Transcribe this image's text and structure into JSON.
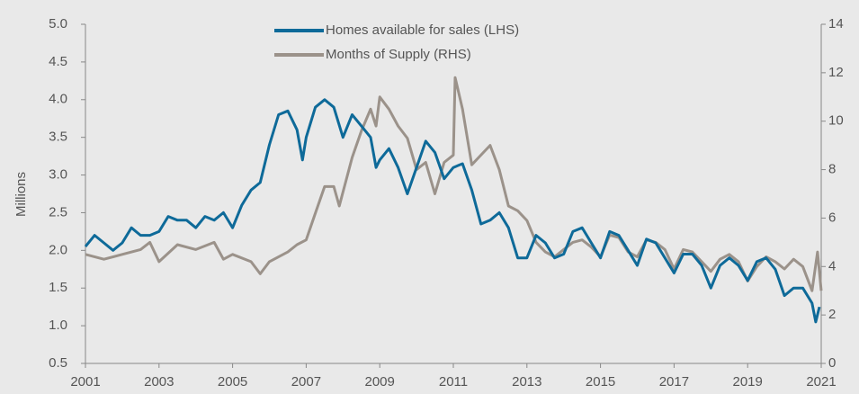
{
  "chart_data": {
    "type": "line",
    "y_label": "Millions",
    "legend": "top",
    "xlim": [
      2001,
      2021
    ],
    "xticks": [
      2001,
      2003,
      2005,
      2007,
      2009,
      2011,
      2013,
      2015,
      2017,
      2019,
      2021
    ],
    "ylim": [
      0.5,
      5.0
    ],
    "yticks": [
      {
        "value": 0.5,
        "label": "0.5"
      },
      {
        "value": 1.0,
        "label": "1.0"
      },
      {
        "value": 1.5,
        "label": "1.5"
      },
      {
        "value": 2.0,
        "label": "2.0"
      },
      {
        "value": 2.5,
        "label": "2.5"
      },
      {
        "value": 3.0,
        "label": "3.0"
      },
      {
        "value": 3.5,
        "label": "3.5"
      },
      {
        "value": 4.0,
        "label": "4.0"
      },
      {
        "value": 4.5,
        "label": "4.5"
      },
      {
        "value": 5.0,
        "label": "5.0"
      }
    ],
    "y2lim": [
      0,
      14
    ],
    "y2ticks": [
      0,
      2,
      4,
      6,
      8,
      10,
      12,
      14
    ],
    "series": [
      {
        "name": "Homes available for sales (LHS)",
        "color": "#0e6a99",
        "axis": "y",
        "x": [
          2001.0,
          2001.25,
          2001.5,
          2001.75,
          2002.0,
          2002.25,
          2002.5,
          2002.75,
          2003.0,
          2003.25,
          2003.5,
          2003.75,
          2004.0,
          2004.25,
          2004.5,
          2004.75,
          2005.0,
          2005.25,
          2005.5,
          2005.75,
          2006.0,
          2006.25,
          2006.5,
          2006.75,
          2006.9,
          2007.0,
          2007.25,
          2007.5,
          2007.75,
          2008.0,
          2008.25,
          2008.5,
          2008.75,
          2008.9,
          2009.0,
          2009.25,
          2009.5,
          2009.75,
          2010.0,
          2010.25,
          2010.5,
          2010.75,
          2011.0,
          2011.25,
          2011.5,
          2011.75,
          2012.0,
          2012.25,
          2012.5,
          2012.75,
          2013.0,
          2013.25,
          2013.5,
          2013.75,
          2014.0,
          2014.25,
          2014.5,
          2014.75,
          2015.0,
          2015.25,
          2015.5,
          2015.75,
          2016.0,
          2016.25,
          2016.5,
          2016.75,
          2017.0,
          2017.25,
          2017.5,
          2017.75,
          2018.0,
          2018.25,
          2018.5,
          2018.75,
          2019.0,
          2019.25,
          2019.5,
          2019.75,
          2020.0,
          2020.25,
          2020.5,
          2020.75,
          2020.85,
          2020.95
        ],
        "values": [
          2.05,
          2.2,
          2.1,
          2.0,
          2.1,
          2.3,
          2.2,
          2.2,
          2.25,
          2.45,
          2.4,
          2.4,
          2.3,
          2.45,
          2.4,
          2.5,
          2.3,
          2.6,
          2.8,
          2.9,
          3.4,
          3.8,
          3.85,
          3.6,
          3.2,
          3.5,
          3.9,
          4.0,
          3.9,
          3.5,
          3.8,
          3.65,
          3.5,
          3.1,
          3.2,
          3.35,
          3.1,
          2.75,
          3.1,
          3.45,
          3.3,
          2.95,
          3.1,
          3.15,
          2.8,
          2.35,
          2.4,
          2.5,
          2.3,
          1.9,
          1.9,
          2.2,
          2.1,
          1.9,
          1.95,
          2.25,
          2.3,
          2.1,
          1.9,
          2.25,
          2.2,
          2.0,
          1.8,
          2.15,
          2.1,
          1.9,
          1.7,
          1.95,
          1.95,
          1.8,
          1.5,
          1.8,
          1.9,
          1.8,
          1.6,
          1.85,
          1.9,
          1.75,
          1.4,
          1.5,
          1.5,
          1.3,
          1.05,
          1.25
        ]
      },
      {
        "name": "Months of Supply (RHS)",
        "color": "#9b928a",
        "axis": "y2",
        "x": [
          2001.0,
          2001.5,
          2002.0,
          2002.5,
          2002.75,
          2003.0,
          2003.5,
          2004.0,
          2004.5,
          2004.75,
          2005.0,
          2005.5,
          2005.75,
          2006.0,
          2006.5,
          2006.75,
          2007.0,
          2007.25,
          2007.5,
          2007.75,
          2007.9,
          2008.25,
          2008.5,
          2008.75,
          2008.9,
          2009.0,
          2009.25,
          2009.5,
          2009.75,
          2010.0,
          2010.25,
          2010.5,
          2010.75,
          2011.0,
          2011.05,
          2011.25,
          2011.5,
          2011.75,
          2012.0,
          2012.25,
          2012.5,
          2012.75,
          2013.0,
          2013.25,
          2013.5,
          2013.75,
          2014.0,
          2014.25,
          2014.5,
          2014.75,
          2015.0,
          2015.25,
          2015.5,
          2015.75,
          2016.0,
          2016.25,
          2016.5,
          2016.75,
          2017.0,
          2017.25,
          2017.5,
          2017.75,
          2018.0,
          2018.25,
          2018.5,
          2018.75,
          2019.0,
          2019.25,
          2019.5,
          2019.75,
          2020.0,
          2020.25,
          2020.5,
          2020.75,
          2020.9,
          2021.0
        ],
        "values": [
          4.5,
          4.3,
          4.5,
          4.7,
          5.0,
          4.2,
          4.9,
          4.7,
          5.0,
          4.3,
          4.5,
          4.2,
          3.7,
          4.2,
          4.6,
          4.9,
          5.1,
          6.2,
          7.3,
          7.3,
          6.5,
          8.5,
          9.6,
          10.5,
          9.8,
          11.0,
          10.5,
          9.8,
          9.3,
          8.0,
          8.3,
          7.0,
          8.3,
          8.6,
          11.8,
          10.5,
          8.2,
          8.6,
          9.0,
          8.0,
          6.5,
          6.3,
          5.9,
          5.0,
          4.6,
          4.4,
          4.7,
          5.0,
          5.1,
          4.8,
          4.4,
          5.3,
          5.2,
          4.6,
          4.4,
          5.1,
          5.0,
          4.7,
          3.9,
          4.7,
          4.6,
          4.2,
          3.8,
          4.3,
          4.5,
          4.2,
          3.4,
          4.0,
          4.4,
          4.2,
          3.9,
          4.3,
          4.0,
          3.0,
          4.6,
          3.0
        ]
      }
    ]
  }
}
